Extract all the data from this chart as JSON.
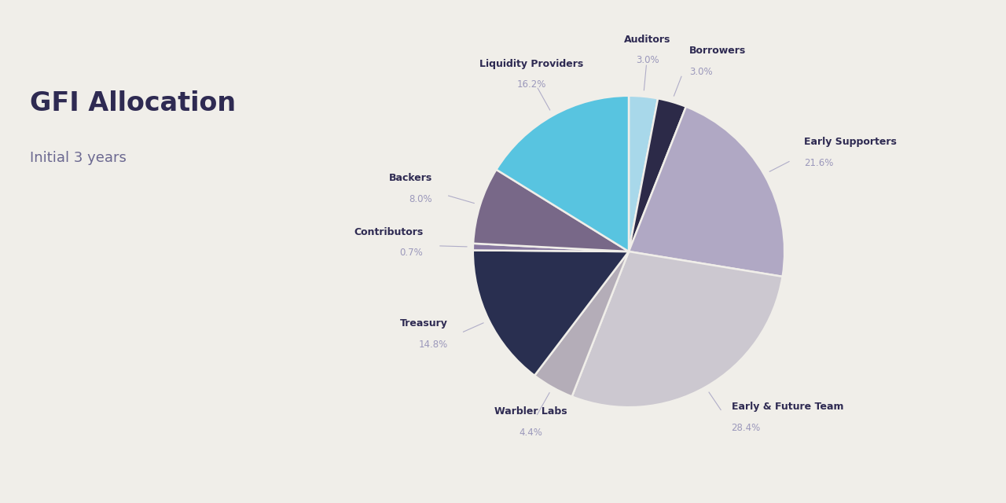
{
  "title": "GFI Allocation",
  "subtitle": "Initial 3 years",
  "background_color": "#f0eee9",
  "title_color": "#2e2a52",
  "subtitle_color": "#6b6890",
  "label_name_color": "#2e2a52",
  "label_pct_color": "#9b98bb",
  "ordered_slices": [
    {
      "label": "Auditors",
      "pct": 3.0,
      "color": "#a8d8ea"
    },
    {
      "label": "Borrowers",
      "pct": 3.0,
      "color": "#2c2a48"
    },
    {
      "label": "Early Supporters",
      "pct": 21.6,
      "color": "#b0a8c4"
    },
    {
      "label": "Early & Future Team",
      "pct": 28.4,
      "color": "#ccc8d0"
    },
    {
      "label": "Warbler Labs",
      "pct": 4.4,
      "color": "#b4adb8"
    },
    {
      "label": "Treasury",
      "pct": 14.8,
      "color": "#292f50"
    },
    {
      "label": "Contributors",
      "pct": 0.7,
      "color": "#8878a0"
    },
    {
      "label": "Backers",
      "pct": 8.0,
      "color": "#786888"
    },
    {
      "label": "Liquidity Providers",
      "pct": 16.2,
      "color": "#58c4e0"
    }
  ]
}
